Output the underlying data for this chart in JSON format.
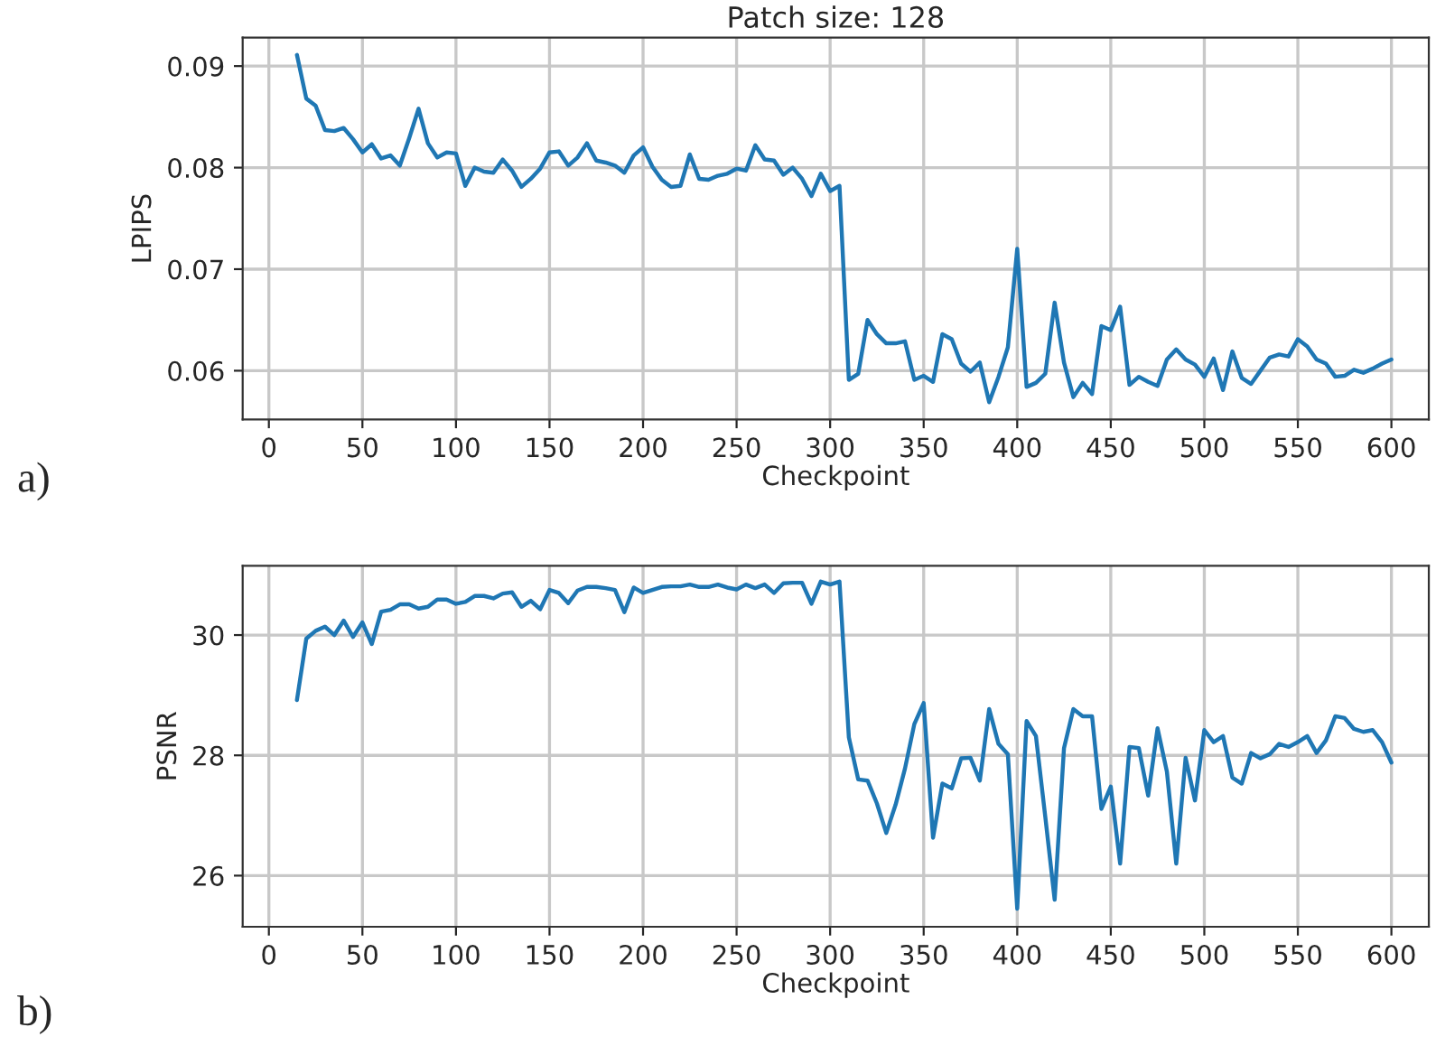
{
  "chart_data": [
    {
      "type": "line",
      "title": "Patch size: 128",
      "xlabel": "Checkpoint",
      "ylabel": "LPIPS",
      "annotations": [
        "a)"
      ],
      "x": [
        15,
        20,
        25,
        30,
        35,
        40,
        45,
        50,
        55,
        60,
        65,
        70,
        75,
        80,
        85,
        90,
        95,
        100,
        105,
        110,
        115,
        120,
        125,
        130,
        135,
        140,
        145,
        150,
        155,
        160,
        165,
        170,
        175,
        180,
        185,
        190,
        195,
        200,
        205,
        210,
        215,
        220,
        225,
        230,
        235,
        240,
        245,
        250,
        255,
        260,
        265,
        270,
        275,
        280,
        285,
        290,
        295,
        300,
        305,
        310,
        315,
        320,
        325,
        330,
        335,
        340,
        345,
        350,
        355,
        360,
        365,
        370,
        375,
        380,
        385,
        390,
        395,
        400,
        405,
        410,
        415,
        420,
        425,
        430,
        435,
        440,
        445,
        450,
        455,
        460,
        465,
        470,
        475,
        480,
        485,
        490,
        495,
        500,
        505,
        510,
        515,
        520,
        525,
        530,
        535,
        540,
        545,
        550,
        555,
        560,
        565,
        570,
        575,
        580,
        585,
        590,
        595,
        600
      ],
      "series": [
        {
          "color": "#1f77b4",
          "values": [
            0.0911,
            0.0868,
            0.0861,
            0.0837,
            0.0836,
            0.0839,
            0.0828,
            0.0815,
            0.0823,
            0.0809,
            0.0812,
            0.0802,
            0.0829,
            0.0858,
            0.0824,
            0.081,
            0.0815,
            0.0814,
            0.0782,
            0.08,
            0.0796,
            0.0795,
            0.0808,
            0.0797,
            0.0781,
            0.0789,
            0.0799,
            0.0815,
            0.0816,
            0.0802,
            0.081,
            0.0824,
            0.0807,
            0.0805,
            0.0802,
            0.0795,
            0.0812,
            0.082,
            0.0801,
            0.0788,
            0.0781,
            0.0782,
            0.0813,
            0.0789,
            0.0788,
            0.0792,
            0.0794,
            0.0799,
            0.0797,
            0.0822,
            0.0808,
            0.0807,
            0.0793,
            0.08,
            0.0789,
            0.0772,
            0.0794,
            0.0777,
            0.0782,
            0.0591,
            0.0597,
            0.065,
            0.0636,
            0.0627,
            0.0627,
            0.0629,
            0.0591,
            0.0595,
            0.0589,
            0.0636,
            0.0631,
            0.0607,
            0.0599,
            0.0608,
            0.0569,
            0.0594,
            0.0623,
            0.072,
            0.0584,
            0.0588,
            0.0597,
            0.0667,
            0.0608,
            0.0574,
            0.0588,
            0.0577,
            0.0644,
            0.064,
            0.0663,
            0.0586,
            0.0594,
            0.0589,
            0.0585,
            0.0611,
            0.0621,
            0.0611,
            0.0606,
            0.0594,
            0.0612,
            0.0581,
            0.0619,
            0.0593,
            0.0587,
            0.06,
            0.0613,
            0.0616,
            0.0614,
            0.0631,
            0.0624,
            0.0611,
            0.0607,
            0.0594,
            0.0595,
            0.0601,
            0.0598,
            0.0602,
            0.0607,
            0.0611
          ]
        }
      ],
      "xlim": [
        -14,
        620
      ],
      "xticks": [
        0,
        50,
        100,
        150,
        200,
        250,
        300,
        350,
        400,
        450,
        500,
        550,
        600
      ],
      "ylim": [
        0.0552,
        0.0928
      ],
      "yticks": [
        0.06,
        0.07,
        0.08,
        0.09
      ],
      "grid": true
    },
    {
      "type": "line",
      "xlabel": "Checkpoint",
      "ylabel": "PSNR",
      "annotations": [
        "b)"
      ],
      "x": [
        15,
        20,
        25,
        30,
        35,
        40,
        45,
        50,
        55,
        60,
        65,
        70,
        75,
        80,
        85,
        90,
        95,
        100,
        105,
        110,
        115,
        120,
        125,
        130,
        135,
        140,
        145,
        150,
        155,
        160,
        165,
        170,
        175,
        180,
        185,
        190,
        195,
        200,
        205,
        210,
        215,
        220,
        225,
        230,
        235,
        240,
        245,
        250,
        255,
        260,
        265,
        270,
        275,
        280,
        285,
        290,
        295,
        300,
        305,
        310,
        315,
        320,
        325,
        330,
        335,
        340,
        345,
        350,
        355,
        360,
        365,
        370,
        375,
        380,
        385,
        390,
        395,
        400,
        405,
        410,
        415,
        420,
        425,
        430,
        435,
        440,
        445,
        450,
        455,
        460,
        465,
        470,
        475,
        480,
        485,
        490,
        495,
        500,
        505,
        510,
        515,
        520,
        525,
        530,
        535,
        540,
        545,
        550,
        555,
        560,
        565,
        570,
        575,
        580,
        585,
        590,
        595,
        600
      ],
      "series": [
        {
          "color": "#1f77b4",
          "values": [
            28.92,
            29.94,
            30.07,
            30.14,
            30.0,
            30.24,
            29.97,
            30.21,
            29.85,
            30.39,
            30.42,
            30.51,
            30.51,
            30.44,
            30.47,
            30.59,
            30.59,
            30.52,
            30.55,
            30.65,
            30.65,
            30.61,
            30.69,
            30.71,
            30.47,
            30.57,
            30.43,
            30.75,
            30.7,
            30.53,
            30.74,
            30.8,
            30.8,
            30.78,
            30.75,
            30.38,
            30.79,
            30.7,
            30.75,
            30.8,
            30.81,
            30.81,
            30.84,
            30.8,
            30.8,
            30.84,
            30.79,
            30.76,
            30.84,
            30.78,
            30.84,
            30.7,
            30.86,
            30.87,
            30.87,
            30.52,
            30.89,
            30.84,
            30.89,
            28.3,
            27.6,
            27.58,
            27.2,
            26.71,
            27.18,
            27.78,
            28.52,
            28.87,
            26.63,
            27.53,
            27.45,
            27.95,
            27.96,
            27.58,
            28.77,
            28.19,
            28.02,
            25.45,
            28.57,
            28.32,
            26.98,
            25.6,
            28.12,
            28.77,
            28.65,
            28.65,
            27.11,
            27.48,
            26.2,
            28.14,
            28.12,
            27.33,
            28.45,
            27.73,
            26.2,
            27.96,
            27.25,
            28.42,
            28.22,
            28.32,
            27.63,
            27.53,
            28.04,
            27.95,
            28.02,
            28.19,
            28.14,
            28.22,
            28.32,
            28.04,
            28.25,
            28.65,
            28.62,
            28.44,
            28.39,
            28.42,
            28.22,
            27.88
          ]
        }
      ],
      "xlim": [
        -14,
        620
      ],
      "xticks": [
        0,
        50,
        100,
        150,
        200,
        250,
        300,
        350,
        400,
        450,
        500,
        550,
        600
      ],
      "ylim": [
        25.15,
        31.15
      ],
      "yticks": [
        26,
        28,
        30
      ],
      "grid": true
    }
  ]
}
